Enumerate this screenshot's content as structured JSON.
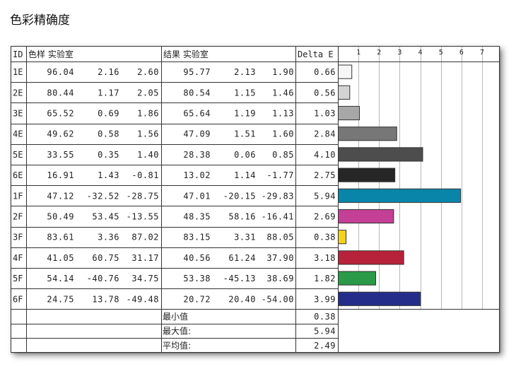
{
  "page_title": "色彩精确度",
  "headers": {
    "id": "ID",
    "reference": "色样 实验室",
    "result": "结果 实验室",
    "delta": "Delta E"
  },
  "summary_labels": {
    "min": "最小值",
    "max": "最大值:",
    "avg": "平均值:"
  },
  "summary_values": {
    "min": "0.38",
    "max": "5.94",
    "avg": "2.49"
  },
  "chart_data": {
    "type": "bar",
    "orientation": "horizontal",
    "xlim": [
      0,
      7
    ],
    "ticks": [
      "1",
      "2",
      "3",
      "4",
      "5",
      "6",
      "7"
    ],
    "grid": true,
    "categories": [
      "1E",
      "2E",
      "3E",
      "4E",
      "5E",
      "6E",
      "1F",
      "2F",
      "3F",
      "4F",
      "5F",
      "6F"
    ],
    "values": [
      0.66,
      0.56,
      1.03,
      2.84,
      4.1,
      2.75,
      5.94,
      2.69,
      0.38,
      3.18,
      1.82,
      3.99
    ],
    "rows": [
      {
        "id": "1E",
        "ref": [
          "96.04",
          "2.16",
          "2.60"
        ],
        "res": [
          "95.77",
          "2.13",
          "1.90"
        ],
        "de": "0.66",
        "color": "#f6f6f6"
      },
      {
        "id": "2E",
        "ref": [
          "80.44",
          "1.17",
          "2.05"
        ],
        "res": [
          "80.54",
          "1.15",
          "1.46"
        ],
        "de": "0.56",
        "color": "#d3d3d3"
      },
      {
        "id": "3E",
        "ref": [
          "65.52",
          "0.69",
          "1.86"
        ],
        "res": [
          "65.64",
          "1.19",
          "1.13"
        ],
        "de": "1.03",
        "color": "#a7a7a7"
      },
      {
        "id": "4E",
        "ref": [
          "49.62",
          "0.58",
          "1.56"
        ],
        "res": [
          "47.09",
          "1.51",
          "1.60"
        ],
        "de": "2.84",
        "color": "#777777"
      },
      {
        "id": "5E",
        "ref": [
          "33.55",
          "0.35",
          "1.40"
        ],
        "res": [
          "28.38",
          "0.06",
          "0.85"
        ],
        "de": "4.10",
        "color": "#4d4d4d"
      },
      {
        "id": "6E",
        "ref": [
          "16.91",
          "1.43",
          "-0.81"
        ],
        "res": [
          "13.02",
          "1.14",
          "-1.77"
        ],
        "de": "2.75",
        "color": "#262626"
      },
      {
        "id": "1F",
        "ref": [
          "47.12",
          "-32.52",
          "-28.75"
        ],
        "res": [
          "47.01",
          "-20.15",
          "-29.83"
        ],
        "de": "5.94",
        "color": "#0a85aa"
      },
      {
        "id": "2F",
        "ref": [
          "50.49",
          "53.45",
          "-13.55"
        ],
        "res": [
          "48.35",
          "58.16",
          "-16.41"
        ],
        "de": "2.69",
        "color": "#c43f96"
      },
      {
        "id": "3F",
        "ref": [
          "83.61",
          "3.36",
          "87.02"
        ],
        "res": [
          "83.15",
          "3.31",
          "88.05"
        ],
        "de": "0.38",
        "color": "#f4d21c"
      },
      {
        "id": "4F",
        "ref": [
          "41.05",
          "60.75",
          "31.17"
        ],
        "res": [
          "40.56",
          "61.24",
          "37.90"
        ],
        "de": "3.18",
        "color": "#b8213a"
      },
      {
        "id": "5F",
        "ref": [
          "54.14",
          "-40.76",
          "34.75"
        ],
        "res": [
          "53.38",
          "-45.13",
          "38.69"
        ],
        "de": "1.82",
        "color": "#2a9a48"
      },
      {
        "id": "6F",
        "ref": [
          "24.75",
          "13.78",
          "-49.48"
        ],
        "res": [
          "20.72",
          "20.40",
          "-54.00"
        ],
        "de": "3.99",
        "color": "#242e8a"
      }
    ]
  }
}
